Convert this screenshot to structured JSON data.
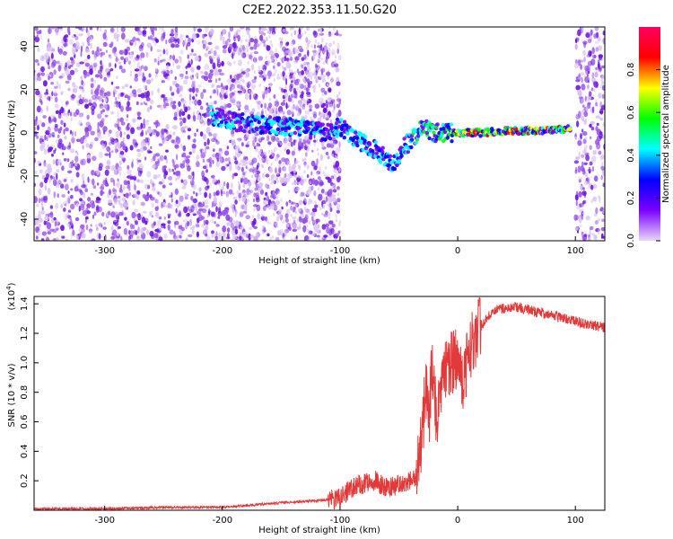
{
  "title": "C2E2.2022.353.11.50.G20",
  "colors": {
    "snr_line": "#e23a3a",
    "scatter_light": "#d9c2f2",
    "scatter_mid": "#9a52ec",
    "scatter_dark": "#6a12e0",
    "colorbar_stops": [
      "#e8d8f8",
      "#7a00ff",
      "#0000ff",
      "#00ffff",
      "#00ff00",
      "#ffff00",
      "#ff0000",
      "#ff0060"
    ]
  },
  "chart_data": [
    {
      "type": "heatmap",
      "title": "",
      "xlabel": "Height of straight line (km)",
      "ylabel": "Frequency (Hz)",
      "xlim": [
        -360,
        125
      ],
      "ylim": [
        -50,
        49
      ],
      "xticks": [
        -300,
        -200,
        -100,
        0,
        100
      ],
      "yticks": [
        -40,
        -20,
        0,
        20,
        40
      ],
      "grid": false,
      "colorbar": {
        "label": "Normalized spectral amplitude",
        "range": [
          0.0,
          1.0
        ],
        "ticks": [
          0.0,
          0.2,
          0.4,
          0.6,
          0.8
        ]
      },
      "dense_noise_regions_km": [
        [
          -360,
          -100
        ],
        [
          100,
          125
        ]
      ],
      "ridge": {
        "x": [
          -210,
          -190,
          -170,
          -150,
          -130,
          -115,
          -100,
          -90,
          -80,
          -70,
          -62,
          -55,
          -48,
          -40,
          -30,
          -20,
          -10,
          0,
          20,
          40,
          60,
          80,
          95
        ],
        "y": [
          8,
          5,
          4,
          3,
          2,
          0,
          3,
          -2,
          -5,
          -8,
          -12,
          -15,
          -8,
          -3,
          2,
          0,
          0,
          0,
          0,
          1,
          1,
          1,
          2
        ]
      }
    },
    {
      "type": "line",
      "title": "",
      "xlabel": "Height of straight line (km)",
      "ylabel": "SNR (10 * v/v)",
      "scale_label": "(x10",
      "scale_exponent": "4",
      "scale_close": ")",
      "xlim": [
        -360,
        125
      ],
      "ylim": [
        0,
        1.45
      ],
      "xticks": [
        -300,
        -200,
        -100,
        0,
        100
      ],
      "yticks": [
        0.2,
        0.4,
        0.6,
        0.8,
        1.0,
        1.2,
        1.4
      ],
      "grid": false,
      "series": [
        {
          "x": [
            -360,
            -300,
            -250,
            -200,
            -150,
            -110,
            -100,
            -90,
            -80,
            -70,
            -60,
            -50,
            -40,
            -35,
            -30,
            -28,
            -26,
            -24,
            -22,
            -20,
            -18,
            -15,
            -10,
            -5,
            0,
            5,
            10,
            20,
            30,
            40,
            50,
            60,
            70,
            80,
            90,
            100,
            110,
            125
          ],
          "values": [
            0.01,
            0.01,
            0.02,
            0.02,
            0.05,
            0.07,
            0.08,
            0.15,
            0.18,
            0.2,
            0.15,
            0.17,
            0.2,
            0.22,
            0.5,
            0.75,
            0.85,
            0.65,
            1.0,
            0.9,
            0.6,
            0.85,
            0.95,
            1.0,
            1.05,
            0.85,
            1.1,
            1.25,
            1.35,
            1.37,
            1.38,
            1.36,
            1.34,
            1.32,
            1.3,
            1.28,
            1.26,
            1.24
          ]
        }
      ]
    }
  ]
}
